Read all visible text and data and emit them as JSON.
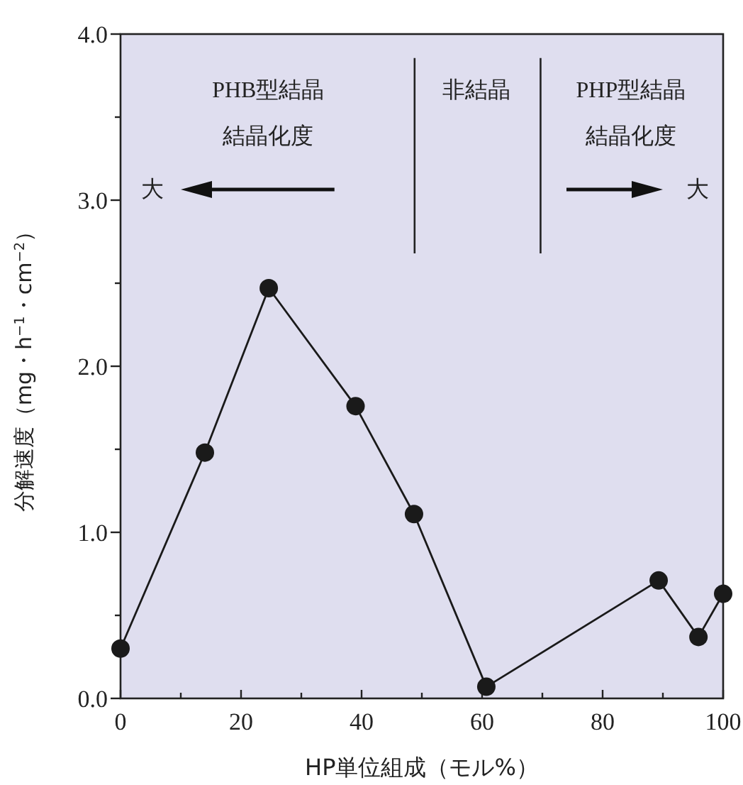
{
  "chart_data": {
    "type": "line",
    "x": [
      0,
      14,
      24.6,
      39,
      48.7,
      60.7,
      89.3,
      95.9,
      100
    ],
    "series": [
      {
        "color": "#1a1a1a",
        "values": [
          0.3,
          1.48,
          2.47,
          1.76,
          1.11,
          0.07,
          0.71,
          0.37,
          0.63
        ]
      }
    ],
    "marker": "circle",
    "line_style": "solid",
    "xlabel": "HP単位組成（モル%）",
    "ylabel": "分解速度（mg・h$^{−1}$・cm$^{−2}$）",
    "xlim": [
      0,
      100
    ],
    "xticks": [
      0,
      {
        "value": 10,
        "label": null
      },
      20,
      {
        "value": 30,
        "label": null
      },
      40,
      {
        "value": 50,
        "label": null
      },
      60,
      {
        "value": 70,
        "label": null
      },
      80,
      {
        "value": 90,
        "label": null
      },
      100
    ],
    "ylim": [
      0,
      4
    ],
    "yticks": [
      {
        "value": 0,
        "label": "0.0"
      },
      {
        "value": 0.5,
        "label": null
      },
      {
        "value": 1,
        "label": "1.0"
      },
      {
        "value": 1.5,
        "label": null
      },
      {
        "value": 2,
        "label": "2.0"
      },
      {
        "value": 2.5,
        "label": null
      },
      {
        "value": 3,
        "label": "3.0"
      },
      {
        "value": 3.5,
        "label": null
      },
      {
        "value": 4,
        "label": "4.0"
      }
    ],
    "ref_lines": [
      {
        "axis": "x",
        "value": 48.8
      },
      {
        "axis": "x",
        "value": 69.7
      }
    ],
    "annotations": [
      "PHB型結晶",
      "結晶化度",
      "大",
      "非結晶",
      "PHP型結晶",
      "結晶化度",
      "大"
    ]
  }
}
